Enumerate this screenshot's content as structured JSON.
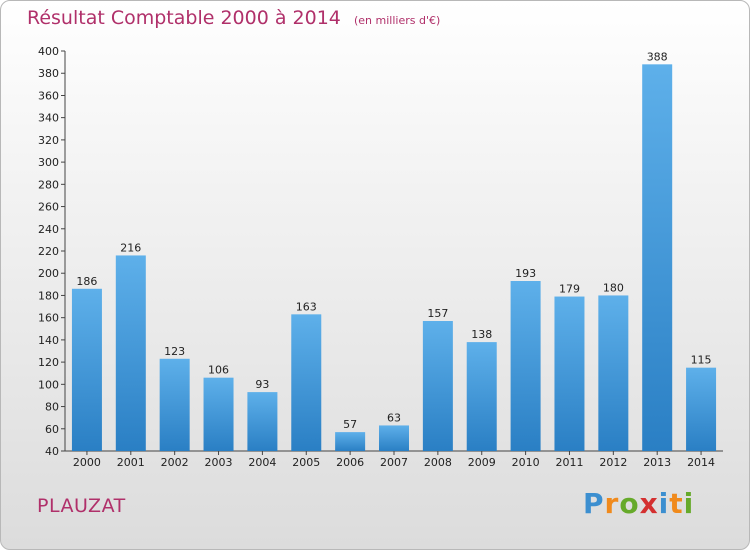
{
  "title": "Résultat Comptable 2000 à 2014",
  "subtitle": "(en milliers d'€)",
  "commune": "PLAUZAT",
  "logo": {
    "letters": [
      "P",
      "r",
      "o",
      "x",
      "i",
      "t",
      "i"
    ],
    "colors": [
      "#3c8fd0",
      "#f08a1c",
      "#66aa2a",
      "#d43030",
      "#3c8fd0",
      "#f08a1c",
      "#66aa2a"
    ]
  },
  "colors": {
    "title": "#b0306a",
    "bar_light": "#5eb0ea",
    "bar_dark": "#2a7fc4"
  },
  "chart_data": {
    "type": "bar",
    "categories": [
      "2000",
      "2001",
      "2002",
      "2003",
      "2004",
      "2005",
      "2006",
      "2007",
      "2008",
      "2009",
      "2010",
      "2011",
      "2012",
      "2013",
      "2014"
    ],
    "values": [
      186,
      216,
      123,
      106,
      93,
      163,
      57,
      63,
      157,
      138,
      193,
      179,
      180,
      388,
      115
    ],
    "ylim": [
      40,
      400
    ],
    "yticks": [
      40,
      60,
      80,
      100,
      120,
      140,
      160,
      180,
      200,
      220,
      240,
      260,
      280,
      300,
      320,
      340,
      360,
      380,
      400
    ],
    "grid": false,
    "title": "Résultat Comptable 2000 à 2014",
    "xlabel": "",
    "ylabel": ""
  }
}
